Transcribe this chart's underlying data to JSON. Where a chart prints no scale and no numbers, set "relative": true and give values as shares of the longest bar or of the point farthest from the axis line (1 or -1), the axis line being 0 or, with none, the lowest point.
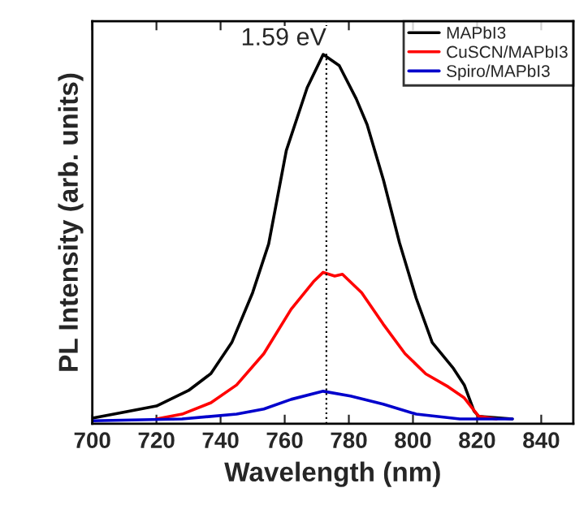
{
  "chart_data": {
    "type": "line",
    "xlabel": "Wavelength (nm)",
    "ylabel": "PL Intensity (arb. units)",
    "relative": true,
    "xlim": [
      700,
      850
    ],
    "xticks": [
      700,
      720,
      740,
      760,
      780,
      800,
      820,
      840
    ],
    "tick_labels": "x",
    "legend": "top right",
    "grid": false,
    "ref_lines": [
      {
        "axis": "x",
        "value": 773,
        "label": "1.59 eV",
        "color": "#000000",
        "line_style": "dotted"
      }
    ],
    "series": [
      {
        "name": "MAPbI3",
        "color": "#000000",
        "x": [
          700,
          720,
          730,
          737,
          743.5,
          750,
          755,
          760.5,
          767,
          772,
          777,
          782.3,
          785.7,
          790.8,
          795.8,
          801,
          806,
          812.6,
          816,
          819,
          820.5,
          831
        ],
        "values": [
          0.015,
          0.048,
          0.09,
          0.136,
          0.22,
          0.355,
          0.487,
          0.74,
          0.91,
          1.0,
          0.97,
          0.88,
          0.81,
          0.66,
          0.49,
          0.34,
          0.22,
          0.15,
          0.105,
          0.035,
          0.02,
          0.013
        ]
      },
      {
        "name": "CuSCN/MAPbI3",
        "color": "#ff0000",
        "x": [
          720,
          728,
          737,
          745,
          753.5,
          762,
          769,
          772,
          775.6,
          778,
          784,
          790.7,
          797.5,
          804,
          811,
          816,
          820.5,
          826
        ],
        "values": [
          0.013,
          0.026,
          0.057,
          0.105,
          0.19,
          0.31,
          0.385,
          0.41,
          0.4,
          0.405,
          0.355,
          0.27,
          0.19,
          0.135,
          0.1,
          0.07,
          0.02,
          0.013
        ]
      },
      {
        "name": "Spiro/MAPbI3",
        "color": "#0000cc",
        "x": [
          700,
          728,
          745,
          753.5,
          762,
          772,
          780.5,
          790.7,
          801,
          814.6,
          831
        ],
        "values": [
          0.008,
          0.013,
          0.026,
          0.04,
          0.066,
          0.088,
          0.075,
          0.053,
          0.026,
          0.013,
          0.013
        ]
      }
    ]
  }
}
